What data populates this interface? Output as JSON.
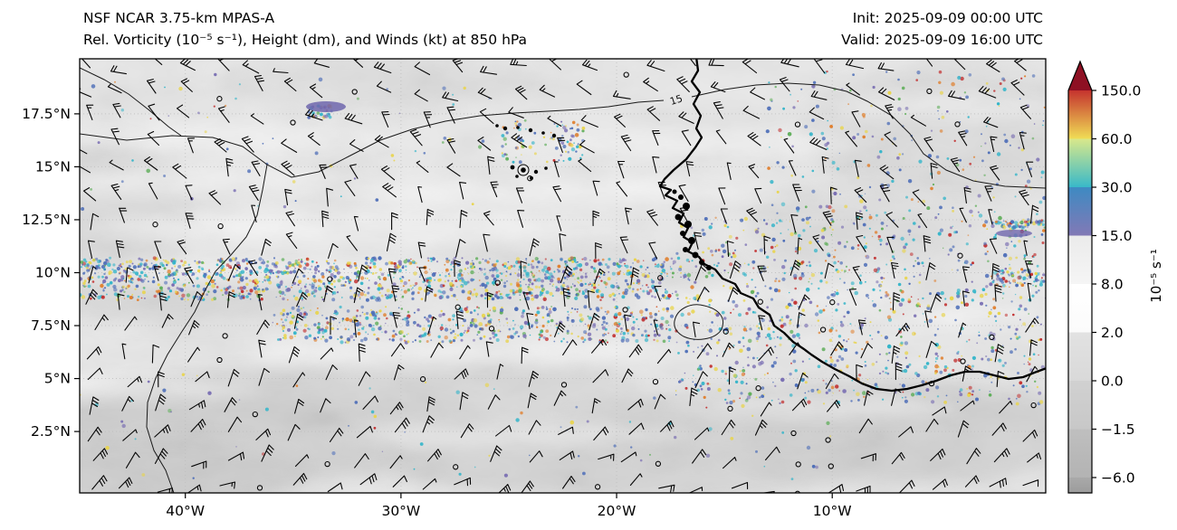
{
  "chart_data": {
    "type": "heatmap",
    "title": "NSF NCAR 3.75-km MPAS-A",
    "subtitle": "Rel. Vorticity (10⁻⁵ s⁻¹), Height (dm), and Winds (kt) at 850 hPa",
    "init": "Init: 2025-09-09 00:00 UTC",
    "valid": "Valid: 2025-09-09 16:00 UTC",
    "level": "850 hPa",
    "x_axis": {
      "range_deg": [
        -44.9,
        -0.1
      ],
      "ticks": [
        {
          "value_deg": -40,
          "label": "40°W"
        },
        {
          "value_deg": -30,
          "label": "30°W"
        },
        {
          "value_deg": -20,
          "label": "20°W"
        },
        {
          "value_deg": -10,
          "label": "10°W"
        }
      ]
    },
    "y_axis": {
      "range_deg": [
        -0.4,
        20.1
      ],
      "ticks": [
        {
          "value_deg": 17.5,
          "label": "17.5°N"
        },
        {
          "value_deg": 15,
          "label": "15°N"
        },
        {
          "value_deg": 12.5,
          "label": "12.5°N"
        },
        {
          "value_deg": 10,
          "label": "10°N"
        },
        {
          "value_deg": 7.5,
          "label": "7.5°N"
        },
        {
          "value_deg": 5,
          "label": "5°N"
        },
        {
          "value_deg": 2.5,
          "label": "2.5°N"
        }
      ]
    },
    "colorbar": {
      "label": "10⁻⁵ s⁻¹",
      "tick_labels": [
        "150.0",
        "60.0",
        "30.0",
        "15.0",
        "8.0",
        "2.0",
        "0.0",
        "−1.5",
        "−6.0"
      ],
      "boundaries": [
        -6,
        -1.5,
        0,
        2,
        8,
        15,
        30,
        60,
        150
      ],
      "extend": "max",
      "bands": [
        {
          "range": "under −6.0",
          "c1": "#9c9c9c",
          "c2": "#a9a9a9"
        },
        {
          "range": "−6.0 to −1.5",
          "c1": "#b3b3b3",
          "c2": "#bfbfbf"
        },
        {
          "range": "−1.5 to 0.0",
          "c1": "#c8c8c8",
          "c2": "#d1d1d1"
        },
        {
          "range": "0.0 to 2.0",
          "c1": "#d9d9d9",
          "c2": "#e2e2e2"
        },
        {
          "range": "2.0 to 8.0",
          "c1": "#fbfbfb",
          "c2": "#ffffff"
        },
        {
          "range": "8.0 to 15.0",
          "c1": "#f5f5f5",
          "c2": "#ebebeb"
        },
        {
          "range": "15.0 to 30.0",
          "c1": "#8279b6",
          "c2": "#3e8ac2"
        },
        {
          "range": "30.0 to 60.0",
          "c1": "#38b9c9",
          "c2": "#d9e88a"
        },
        {
          "range": "60.0 to 150.0",
          "c1": "#f0dd55",
          "c2": "#c5332e"
        },
        {
          "range": "over 150.0",
          "c1": "#8e1023",
          "c2": "#8e1023"
        }
      ]
    },
    "contours": {
      "field": "Height (dm)",
      "labels": [
        "15"
      ]
    },
    "wind": {
      "units": "kt",
      "style": "barbs"
    },
    "vorticity_features": [
      {
        "name": "itcz-main-band",
        "lat": [
          8.7,
          10.7
        ],
        "lon": [
          -44.9,
          -17.3
        ],
        "density": 1300
      },
      {
        "name": "itcz-secondary-band",
        "lat": [
          6.7,
          8.4
        ],
        "lon": [
          -36,
          -17.3
        ],
        "density": 520
      },
      {
        "name": "west-africa-coastal",
        "lat": [
          3.8,
          12.6
        ],
        "lon": [
          -17.3,
          -0.1
        ],
        "density": 950
      },
      {
        "name": "sahel-east-scatter",
        "lat": [
          12.6,
          19.5
        ],
        "lon": [
          -13,
          -0.1
        ],
        "density": 230
      },
      {
        "name": "north-west-scatter",
        "lat": [
          13,
          19.5
        ],
        "lon": [
          -44.9,
          -25
        ],
        "density": 60
      },
      {
        "name": "cape-verde-cluster",
        "lat": [
          15.2,
          17.2
        ],
        "lon": [
          -25.5,
          -21.5
        ],
        "density": 90
      },
      {
        "name": "purple-blob-northwest",
        "lat": [
          17.3,
          17.9
        ],
        "lon": [
          -34.3,
          -33.2
        ],
        "density": 30
      },
      {
        "name": "east-streak-12n",
        "lat": [
          12.1,
          12.5
        ],
        "lon": [
          -2.6,
          -0.1
        ],
        "density": 60
      },
      {
        "name": "right-edge-streak-10n",
        "lat": [
          9.3,
          10.2
        ],
        "lon": [
          -3,
          -0.1
        ],
        "density": 70
      },
      {
        "name": "south-sparse",
        "lat": [
          0.2,
          5.2
        ],
        "lon": [
          -44.9,
          -10
        ],
        "density": 80
      }
    ]
  }
}
